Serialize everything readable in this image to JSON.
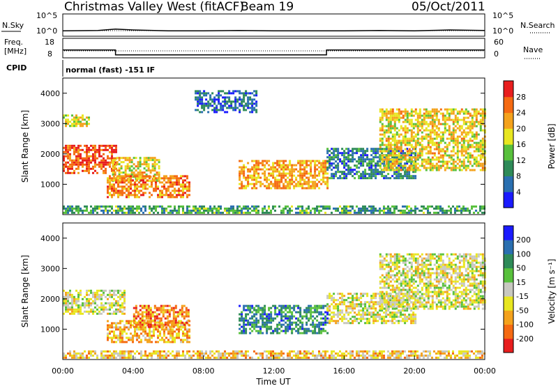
{
  "header": {
    "station": "Christmas Valley West (fitACF)",
    "beam": "Beam 19",
    "date": "05/Oct/2011"
  },
  "strip_labels": {
    "nsky": "N.Sky",
    "nsearch": "N.Search",
    "freq_line1": "Freq.",
    "freq_line2": "[MHz]",
    "nave": "Nave",
    "cpid": "CPID",
    "cpid_value": "normal (fast) -151 IF",
    "noise_ticks_top": "10^5",
    "noise_ticks_bottom": "10^0",
    "freq_ticks": [
      "18",
      "8"
    ],
    "nave_ticks": [
      "60",
      "0"
    ]
  },
  "colors": {
    "power_scale": [
      "#1a1aff",
      "#2a6fb0",
      "#2e8a58",
      "#58c03c",
      "#e8e620",
      "#f4a21c",
      "#f56a12",
      "#e81e1e"
    ],
    "velocity_scale": [
      "#e81e1e",
      "#f56a12",
      "#f4a21c",
      "#e8e620",
      "#c8c8c0",
      "#58c03c",
      "#2e8a58",
      "#2a6fb0",
      "#1a1aff"
    ]
  },
  "chart_data": [
    {
      "type": "line",
      "name": "noise",
      "x": [
        0,
        2,
        3,
        4,
        6,
        8,
        10,
        12,
        14,
        16,
        18,
        20,
        22,
        24
      ],
      "series": [
        {
          "values": [
            1.2,
            1.3,
            1.6,
            1.4,
            1.2,
            1.2,
            1.3,
            1.2,
            1.2,
            1.2,
            1.3,
            1.2,
            1.4,
            1.3
          ]
        }
      ],
      "ylim": [
        0,
        5
      ],
      "xlim": [
        0,
        24
      ]
    },
    {
      "type": "line",
      "name": "frequency",
      "x": [
        0,
        3,
        3,
        15,
        15,
        24
      ],
      "series": [
        {
          "values": [
            12,
            12,
            9.5,
            9.5,
            12,
            12
          ]
        }
      ],
      "ylim": [
        8,
        18
      ],
      "xlim": [
        0,
        24
      ]
    },
    {
      "type": "heatmap",
      "name": "power",
      "xlabel": "",
      "ylabel": "Slant Range [km]",
      "xlim": [
        0,
        24
      ],
      "ylim": [
        0,
        4500
      ],
      "yticks": [
        "1000",
        "2000",
        "3000",
        "4000"
      ],
      "colorbar": {
        "label": "Power [dB]",
        "ticks": [
          "28",
          "24",
          "20",
          "16",
          "12",
          "8",
          "4"
        ]
      },
      "regions": [
        {
          "x0": 0,
          "x1": 3,
          "r0": 1400,
          "r1": 2300,
          "level": 0.85
        },
        {
          "x0": 2.8,
          "x1": 5.5,
          "r0": 1100,
          "r1": 1900,
          "level": 0.6
        },
        {
          "x0": 2.5,
          "x1": 7.2,
          "r0": 600,
          "r1": 1300,
          "level": 0.75
        },
        {
          "x0": 0,
          "x1": 1.5,
          "r0": 2900,
          "r1": 3300,
          "level": 0.55
        },
        {
          "x0": 10,
          "x1": 15,
          "r0": 900,
          "r1": 1800,
          "level": 0.7
        },
        {
          "x0": 15,
          "x1": 20,
          "r0": 1200,
          "r1": 2200,
          "level": 0.25
        },
        {
          "x0": 18,
          "x1": 24,
          "r0": 1500,
          "r1": 3500,
          "level": 0.6
        },
        {
          "x0": 7.5,
          "x1": 11,
          "r0": 3400,
          "r1": 4100,
          "level": 0.2
        },
        {
          "x0": 0,
          "x1": 24,
          "r0": 50,
          "r1": 300,
          "level": 0.35
        }
      ]
    },
    {
      "type": "heatmap",
      "name": "velocity",
      "xlabel": "Time UT",
      "ylabel": "Slant Range [km]",
      "xlim": [
        0,
        24
      ],
      "ylim": [
        0,
        4500
      ],
      "xticks": [
        "00:00",
        "04:00",
        "08:00",
        "12:00",
        "16:00",
        "20:00",
        "00:00"
      ],
      "yticks": [
        "1000",
        "2000",
        "3000",
        "4000"
      ],
      "colorbar": {
        "label": "Velocity [m s⁻¹]",
        "ticks": [
          "200",
          "100",
          "50",
          "15",
          "-15",
          "-50",
          "-100",
          "-200"
        ]
      },
      "regions": [
        {
          "x0": 0,
          "x1": 3.5,
          "r0": 1500,
          "r1": 2300,
          "level": 0.45
        },
        {
          "x0": 2.5,
          "x1": 7.2,
          "r0": 600,
          "r1": 1300,
          "level": 0.3
        },
        {
          "x0": 4,
          "x1": 7.2,
          "r0": 1100,
          "r1": 1800,
          "level": 0.2
        },
        {
          "x0": 10,
          "x1": 15,
          "r0": 900,
          "r1": 1800,
          "level": 0.75
        },
        {
          "x0": 15,
          "x1": 20,
          "r0": 1200,
          "r1": 2200,
          "level": 0.45
        },
        {
          "x0": 18,
          "x1": 24,
          "r0": 1700,
          "r1": 3500,
          "level": 0.45
        },
        {
          "x0": 0,
          "x1": 24,
          "r0": 50,
          "r1": 300,
          "level": 0.35
        }
      ]
    }
  ]
}
